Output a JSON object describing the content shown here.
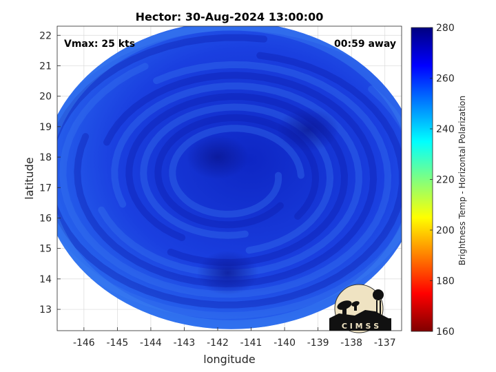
{
  "chart_data": {
    "type": "heatmap",
    "title": "Hector: 30-Aug-2024 13:00:00",
    "xlabel": "longitude",
    "ylabel": "latitude",
    "xlim": [
      -146.8,
      -136.5
    ],
    "ylim": [
      12.3,
      22.3
    ],
    "x_ticks": [
      -146,
      -145,
      -144,
      -143,
      -142,
      -141,
      -140,
      -139,
      -138,
      -137
    ],
    "y_ticks": [
      13,
      14,
      15,
      16,
      17,
      18,
      19,
      20,
      21,
      22
    ],
    "grid": true,
    "annotations": {
      "left": "Vmax: 25 kts",
      "right": "00:59 away"
    },
    "swath": {
      "center_lon": -141.6,
      "center_lat": 17.4,
      "radius_lon": 5.65,
      "radius_lat": 5.05
    },
    "storm_features": [
      {
        "lon": -142.0,
        "lat": 18.0,
        "value": 272
      },
      {
        "lon": -141.7,
        "lat": 14.2,
        "value": 270
      },
      {
        "lon": -139.3,
        "lat": 18.9,
        "value": 268
      }
    ],
    "colorbar": {
      "label": "Brightness Temp - Horizontal Polarization",
      "min": 160,
      "max": 280,
      "ticks": [
        160,
        180,
        200,
        220,
        240,
        260,
        280
      ],
      "colors": [
        "#800000",
        "#ff0000",
        "#ff8000",
        "#ffff00",
        "#80ff80",
        "#00ffff",
        "#0080ff",
        "#0000ff",
        "#000080"
      ]
    }
  },
  "logo": {
    "text": "C I M S S"
  }
}
